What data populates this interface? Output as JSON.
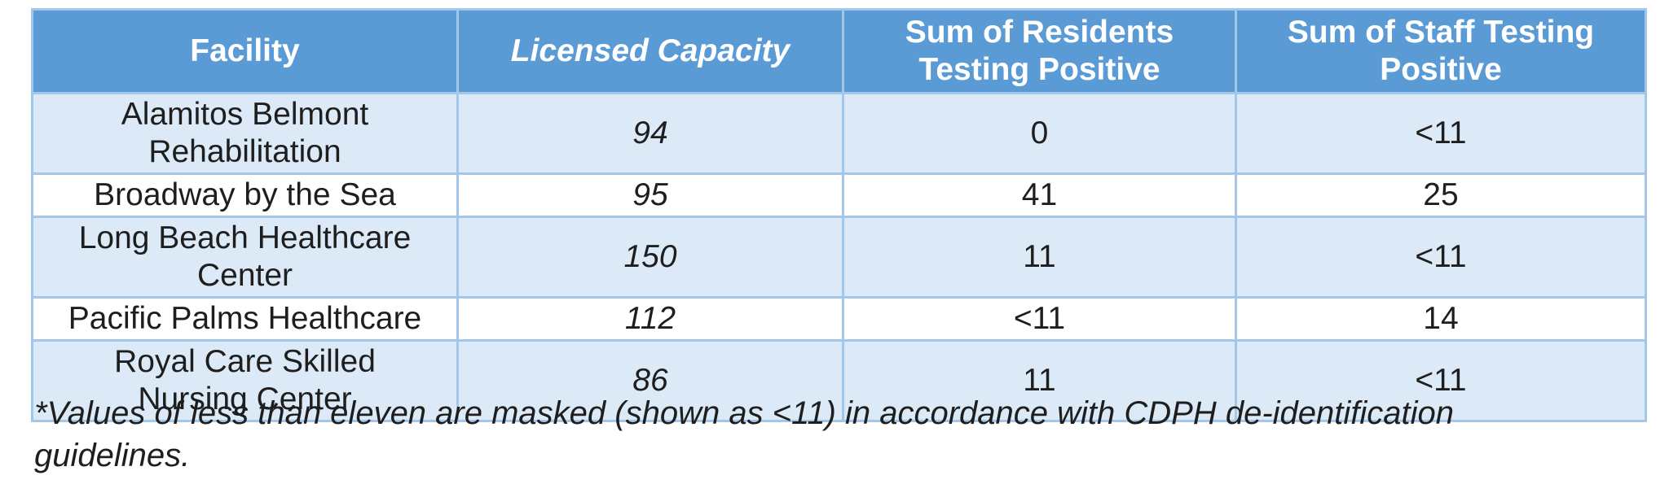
{
  "table": {
    "headers": [
      "Facility",
      "Licensed Capacity",
      "Sum of Residents\nTesting Positive",
      "Sum of Staff Testing\nPositive"
    ],
    "rows": [
      {
        "facility": "Alamitos Belmont\nRehabilitation",
        "licensed_capacity": "94",
        "residents_positive": "0",
        "staff_positive": "<11"
      },
      {
        "facility": "Broadway by the Sea",
        "licensed_capacity": "95",
        "residents_positive": "41",
        "staff_positive": "25"
      },
      {
        "facility": "Long Beach Healthcare\nCenter",
        "licensed_capacity": "150",
        "residents_positive": "11",
        "staff_positive": "<11"
      },
      {
        "facility": "Pacific Palms Healthcare",
        "licensed_capacity": "112",
        "residents_positive": "<11",
        "staff_positive": "14"
      },
      {
        "facility": "Royal Care Skilled\nNursing Center",
        "licensed_capacity": "86",
        "residents_positive": "11",
        "staff_positive": "<11"
      }
    ]
  },
  "footnote": "*Values of less than eleven are masked (shown as <11) in accordance with CDPH de-identification\nguidelines.",
  "colors": {
    "header_bg": "#5b9bd5",
    "header_text": "#ffffff",
    "row_alt_bg": "#dce9f6",
    "row_plain_bg": "#ffffff",
    "border": "#a3c7e8",
    "body_text": "#1e1e1e"
  }
}
